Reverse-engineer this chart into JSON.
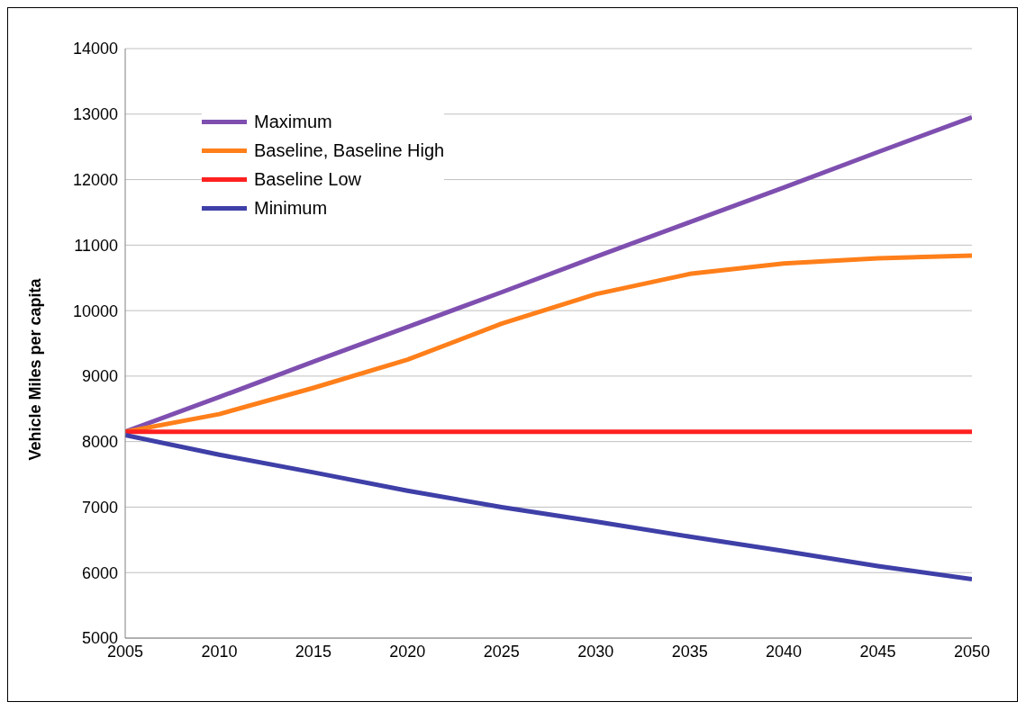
{
  "chart_data": {
    "type": "line",
    "ylabel": "Vehicle Miles per capita",
    "x": [
      2005,
      2010,
      2015,
      2020,
      2025,
      2030,
      2035,
      2040,
      2045,
      2050
    ],
    "xlim": [
      2005,
      2050
    ],
    "xticks": [
      2005,
      2010,
      2015,
      2020,
      2025,
      2030,
      2035,
      2040,
      2045,
      2050
    ],
    "ylim": [
      5000,
      14000
    ],
    "yticks": [
      5000,
      6000,
      7000,
      8000,
      9000,
      10000,
      11000,
      12000,
      13000,
      14000
    ],
    "grid": "y",
    "legend": "top left",
    "marker": "none",
    "line_style": "solid",
    "series": [
      {
        "name": "Maximum",
        "color": "#7f4fb0",
        "values": [
          8150,
          8680,
          9220,
          9750,
          10280,
          10820,
          11350,
          11880,
          12420,
          12950
        ]
      },
      {
        "name": "Baseline, Baseline High",
        "color": "#ff7f1a",
        "values": [
          8150,
          8420,
          8820,
          9250,
          9800,
          10250,
          10560,
          10720,
          10800,
          10840
        ]
      },
      {
        "name": "Baseline Low",
        "color": "#ff2020",
        "values": [
          8150,
          8150,
          8150,
          8150,
          8150,
          8150,
          8150,
          8150,
          8150,
          8150
        ]
      },
      {
        "name": "Minimum",
        "color": "#3f3fa8",
        "values": [
          8100,
          7800,
          7530,
          7250,
          7000,
          6780,
          6550,
          6330,
          6100,
          5900
        ]
      }
    ]
  }
}
